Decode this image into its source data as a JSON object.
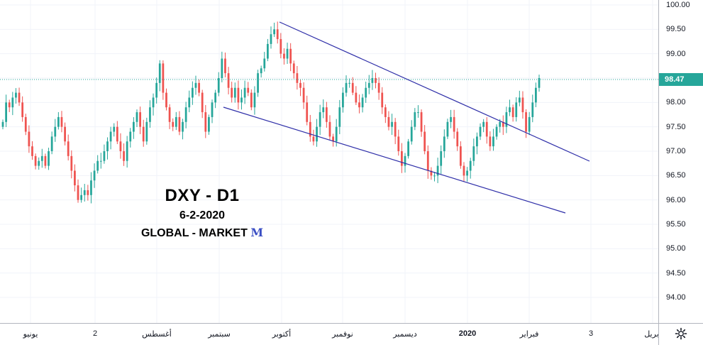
{
  "chart_data": {
    "type": "candlestick",
    "symbol_title": "DXY - D1",
    "date": "6-2-2020",
    "brand": "GLOBAL - MARKET",
    "brand_mark": "M",
    "current_price": "98.47",
    "ylim": [
      93.6,
      100.05
    ],
    "y_ticks": [
      "100.00",
      "99.50",
      "99.00",
      "98.50",
      "98.00",
      "97.50",
      "97.00",
      "96.50",
      "96.00",
      "95.50",
      "95.00",
      "94.50",
      "94.00"
    ],
    "x_ticks": [
      {
        "label": "يونيو",
        "pos": 43,
        "bold": false
      },
      {
        "label": "2",
        "pos": 134,
        "bold": false
      },
      {
        "label": "أغسطس",
        "pos": 221,
        "bold": false
      },
      {
        "label": "سبتمبر",
        "pos": 309,
        "bold": false
      },
      {
        "label": "أكتوبر",
        "pos": 397,
        "bold": false
      },
      {
        "label": "نوفمبر",
        "pos": 483,
        "bold": false
      },
      {
        "label": "ديسمبر",
        "pos": 571,
        "bold": false
      },
      {
        "label": "2020",
        "pos": 659,
        "bold": true
      },
      {
        "label": "فبراير",
        "pos": 746,
        "bold": false
      },
      {
        "label": "3",
        "pos": 833,
        "bold": false
      },
      {
        "label": "أبريل",
        "pos": 920,
        "bold": false
      }
    ],
    "ohlc_path": [
      97.6,
      98.0,
      97.9,
      98.1,
      98.2,
      98.0,
      97.7,
      97.4,
      97.1,
      96.9,
      96.7,
      96.8,
      96.9,
      96.7,
      97.0,
      97.3,
      97.5,
      97.7,
      97.5,
      97.2,
      96.9,
      96.6,
      96.3,
      96.0,
      96.1,
      96.2,
      96.1,
      96.4,
      96.6,
      96.8,
      96.8,
      97.0,
      97.2,
      97.4,
      97.5,
      97.2,
      97.0,
      96.8,
      97.2,
      97.4,
      97.6,
      97.8,
      97.5,
      97.2,
      97.6,
      97.9,
      98.1,
      98.4,
      98.8,
      98.2,
      97.9,
      97.6,
      97.5,
      97.7,
      97.4,
      97.6,
      97.9,
      98.1,
      98.3,
      98.4,
      98.2,
      97.8,
      97.4,
      97.7,
      98.0,
      98.2,
      98.5,
      98.9,
      98.6,
      98.3,
      98.1,
      98.3,
      98.0,
      98.1,
      98.3,
      98.2,
      97.9,
      98.2,
      98.6,
      98.7,
      98.9,
      99.2,
      99.4,
      99.5,
      99.3,
      99.0,
      98.9,
      99.1,
      98.8,
      98.6,
      98.4,
      98.3,
      98.0,
      97.6,
      97.3,
      97.2,
      97.5,
      97.8,
      97.9,
      97.6,
      97.3,
      97.2,
      97.5,
      97.9,
      98.2,
      98.4,
      98.4,
      98.2,
      98.0,
      97.9,
      98.1,
      98.3,
      98.4,
      98.5,
      98.4,
      98.2,
      97.9,
      97.7,
      97.5,
      97.6,
      97.3,
      97.0,
      96.7,
      96.9,
      97.2,
      97.5,
      97.8,
      97.8,
      97.4,
      97.0,
      96.6,
      96.5,
      96.5,
      96.7,
      97.0,
      97.3,
      97.6,
      97.7,
      97.4,
      97.1,
      96.7,
      96.5,
      96.6,
      96.8,
      97.1,
      97.3,
      97.5,
      97.6,
      97.3,
      97.1,
      97.3,
      97.5,
      97.6,
      97.5,
      97.8,
      97.9,
      97.7,
      98.0,
      98.1,
      97.8,
      97.4,
      97.7,
      98.0,
      98.3,
      98.5
    ]
  }
}
